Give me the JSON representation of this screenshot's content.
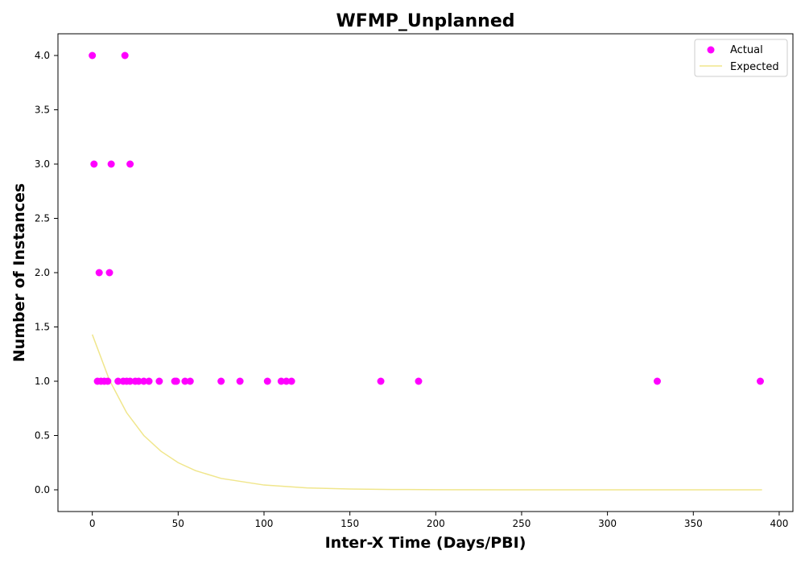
{
  "chart_data": {
    "type": "scatter",
    "title": "WFMP_Unplanned",
    "xlabel": "Inter-X Time (Days/PBI)",
    "ylabel": "Number of Instances",
    "xlim": [
      -20,
      408
    ],
    "ylim": [
      -0.2,
      4.2
    ],
    "xticks": [
      0,
      50,
      100,
      150,
      200,
      250,
      300,
      350,
      400
    ],
    "yticks": [
      0.0,
      0.5,
      1.0,
      1.5,
      2.0,
      2.5,
      3.0,
      3.5,
      4.0
    ],
    "grid": false,
    "legend": {
      "position": "top-right"
    },
    "series": [
      {
        "name": "Actual",
        "kind": "scatter",
        "color": "#ff00ff",
        "points": [
          [
            0,
            4
          ],
          [
            19,
            4
          ],
          [
            1,
            3
          ],
          [
            11,
            3
          ],
          [
            22,
            3
          ],
          [
            4,
            2
          ],
          [
            10,
            2
          ],
          [
            3,
            1
          ],
          [
            5,
            1
          ],
          [
            7,
            1
          ],
          [
            9,
            1
          ],
          [
            15,
            1
          ],
          [
            18,
            1
          ],
          [
            20,
            1
          ],
          [
            22,
            1
          ],
          [
            25,
            1
          ],
          [
            27,
            1
          ],
          [
            30,
            1
          ],
          [
            33,
            1
          ],
          [
            39,
            1
          ],
          [
            48,
            1
          ],
          [
            49,
            1
          ],
          [
            54,
            1
          ],
          [
            57,
            1
          ],
          [
            75,
            1
          ],
          [
            86,
            1
          ],
          [
            102,
            1
          ],
          [
            110,
            1
          ],
          [
            113,
            1
          ],
          [
            116,
            1
          ],
          [
            168,
            1
          ],
          [
            190,
            1
          ],
          [
            329,
            1
          ],
          [
            389,
            1
          ]
        ]
      },
      {
        "name": "Expected",
        "kind": "line",
        "color": "#f0e68c",
        "points": [
          [
            0,
            1.43
          ],
          [
            10,
            1.01
          ],
          [
            20,
            0.71
          ],
          [
            30,
            0.5
          ],
          [
            40,
            0.355
          ],
          [
            50,
            0.25
          ],
          [
            60,
            0.177
          ],
          [
            75,
            0.105
          ],
          [
            100,
            0.044
          ],
          [
            125,
            0.018
          ],
          [
            150,
            0.0076
          ],
          [
            175,
            0.0032
          ],
          [
            200,
            0.0013
          ],
          [
            250,
            0.0002
          ],
          [
            300,
            0.0
          ],
          [
            350,
            0.0
          ],
          [
            390,
            0.0
          ]
        ]
      }
    ]
  }
}
